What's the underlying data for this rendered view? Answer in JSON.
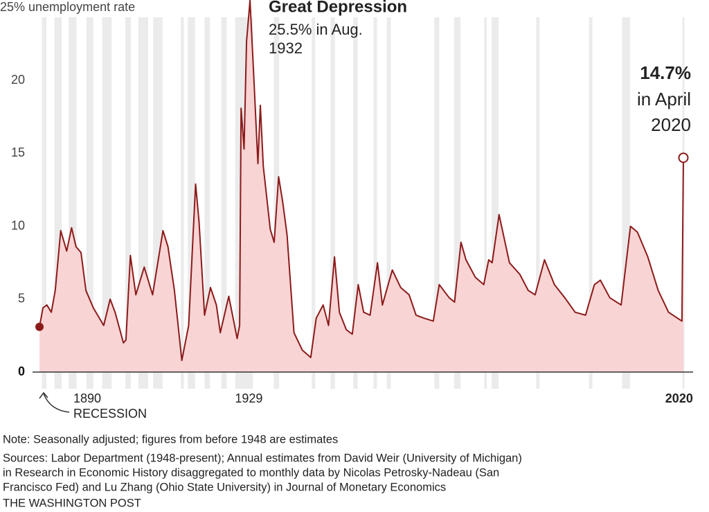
{
  "chart_data": {
    "type": "area",
    "color": "#8b1a1a",
    "fill": "#f9d4d4",
    "recession_color": "#ebebeb",
    "x": [
      1890.0,
      1890.7,
      1891.5,
      1892.4,
      1893.2,
      1894.3,
      1895.5,
      1896.5,
      1897.4,
      1898.4,
      1899.4,
      1900.9,
      1903.0,
      1904.3,
      1905.3,
      1907.0,
      1907.5,
      1908.4,
      1909.5,
      1911.2,
      1912.9,
      1915.0,
      1916.0,
      1917.3,
      1918.8,
      1920.2,
      1921.6,
      1922.3,
      1923.4,
      1924.6,
      1925.8,
      1926.6,
      1928.3,
      1930.0,
      1930.5,
      1930.8,
      1931.4,
      1931.9,
      1932.6,
      1933.3,
      1934.2,
      1934.7,
      1935.3,
      1936.7,
      1937.5,
      1938.4,
      1939.2,
      1940.1,
      1941.5,
      1943.2,
      1944.9,
      1946.0,
      1947.4,
      1948.5,
      1949.7,
      1950.7,
      1952.1,
      1953.3,
      1954.5,
      1955.6,
      1956.9,
      1958.4,
      1959.4,
      1961.4,
      1963.1,
      1964.8,
      1966.2,
      1967.8,
      1969.7,
      1970.9,
      1972.9,
      1974.0,
      1975.3,
      1976.3,
      1978.2,
      1979.9,
      1980.9,
      1981.6,
      1983.0,
      1985.1,
      1987.2,
      1988.9,
      1990.3,
      1992.2,
      1994.2,
      1996.3,
      1998.4,
      2000.5,
      2002.3,
      2003.5,
      2005.4,
      2007.7,
      2009.6,
      2011.0,
      2013.1,
      2015.2,
      2017.3,
      2020.0,
      2020.3
    ],
    "values": [
      3.1,
      4.4,
      4.6,
      4.1,
      5.6,
      9.7,
      8.3,
      9.9,
      8.6,
      8.2,
      5.6,
      4.4,
      3.2,
      5.0,
      4.1,
      2.0,
      2.2,
      8.0,
      5.3,
      7.2,
      5.3,
      9.7,
      8.6,
      5.6,
      0.8,
      3.2,
      12.9,
      10.3,
      3.9,
      5.8,
      4.6,
      2.7,
      5.2,
      2.3,
      3.2,
      18.1,
      15.3,
      22.7,
      25.5,
      20.8,
      14.3,
      18.3,
      14.1,
      9.8,
      8.9,
      13.4,
      11.7,
      9.4,
      2.7,
      1.5,
      1.0,
      3.7,
      4.6,
      3.2,
      7.9,
      4.1,
      2.9,
      2.6,
      6.0,
      4.1,
      3.9,
      7.5,
      4.6,
      7.0,
      5.8,
      5.3,
      3.9,
      3.7,
      3.5,
      6.0,
      5.1,
      4.8,
      8.9,
      7.7,
      6.5,
      6.0,
      7.7,
      7.5,
      10.8,
      7.5,
      6.7,
      5.6,
      5.3,
      7.7,
      6.0,
      5.1,
      4.1,
      3.9,
      6.0,
      6.3,
      5.1,
      4.6,
      10.0,
      9.6,
      7.9,
      5.6,
      4.1,
      3.5,
      14.7
    ],
    "recessions": [
      [
        1890.5,
        1891.4
      ],
      [
        1893.0,
        1894.5
      ],
      [
        1895.9,
        1897.5
      ],
      [
        1899.5,
        1900.9
      ],
      [
        1902.7,
        1904.6
      ],
      [
        1907.4,
        1908.5
      ],
      [
        1910.0,
        1912.0
      ],
      [
        1913.0,
        1914.9
      ],
      [
        1918.6,
        1919.2
      ],
      [
        1920.0,
        1921.5
      ],
      [
        1923.4,
        1924.5
      ],
      [
        1926.8,
        1927.9
      ],
      [
        1929.6,
        1933.2
      ],
      [
        1937.4,
        1938.5
      ],
      [
        1945.1,
        1945.8
      ],
      [
        1948.9,
        1949.8
      ],
      [
        1953.5,
        1954.4
      ],
      [
        1957.6,
        1958.3
      ],
      [
        1960.3,
        1961.1
      ],
      [
        1969.9,
        1970.9
      ],
      [
        1973.9,
        1975.2
      ],
      [
        1980.0,
        1980.5
      ],
      [
        1981.5,
        1982.9
      ],
      [
        1990.5,
        1991.2
      ],
      [
        2001.2,
        2001.9
      ],
      [
        2007.9,
        2009.5
      ],
      [
        2020.1,
        2020.3
      ]
    ],
    "xlim": [
      1890,
      2020.3
    ],
    "xticks": [
      1890,
      1929,
      2020
    ],
    "ylim": [
      0,
      25
    ],
    "yticks": [
      0,
      5,
      10,
      15,
      20,
      {
        "value": 25,
        "label": "25% unemployment rate"
      }
    ],
    "annotations": {
      "depression": [
        "Great Depression",
        "25.5% in Aug.",
        "1932"
      ],
      "latest": [
        "14.7%",
        "in April",
        "2020"
      ],
      "recession": "RECESSION"
    },
    "note": "Note: Seasonally adjusted; figures from before 1948 are estimates",
    "sources": [
      "Sources: Labor Department (1948-present); Annual estimates from David Weir (University of Michigan)",
      "in Research in Economic History disaggregated to monthly data by Nicolas Petrosky-Nadeau (San",
      "Francisco Fed) and Lu Zhang (Ohio State University) in Journal of Monetary Economics"
    ],
    "credit": "THE WASHINGTON POST"
  }
}
